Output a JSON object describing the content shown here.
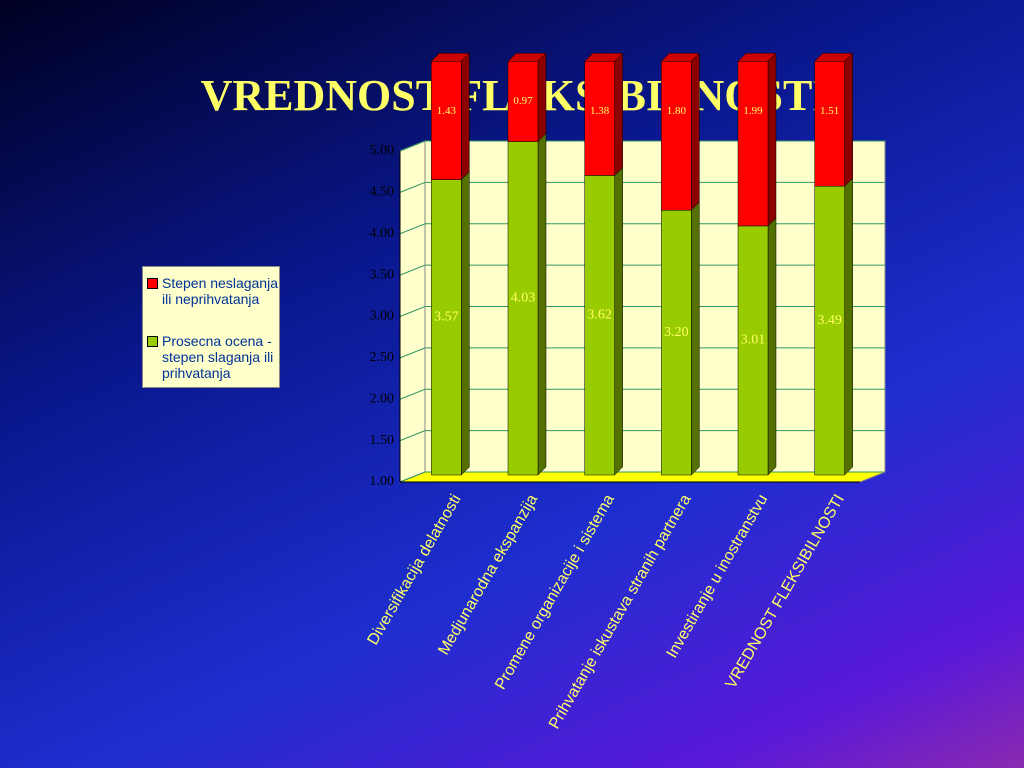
{
  "chart_data": {
    "type": "bar3d_stacked",
    "title": "VREDNOST FLEKSIBILNOSTI",
    "categories": [
      "Diversifikacija delatnosti",
      "Medjunarodna ekspanzija",
      "Promene organizacije i sistema",
      "Prihvatanje iskustava stranih partnera",
      "Investiranje u inostranstvu",
      "VREDNOST FLEKSIBILNOSTI"
    ],
    "series": [
      {
        "name": "Prosecna ocena - stepen slaganja ili prihvatanja",
        "color": "#99cc00",
        "values": [
          3.57,
          4.03,
          3.62,
          3.2,
          3.01,
          3.49
        ],
        "value_labels": [
          "3.57",
          "4.03",
          "3.62",
          "3.20",
          "3.01",
          "3.49"
        ]
      },
      {
        "name": "Stepen neslaganja ili neprihvatanja",
        "color": "#ff0000",
        "values": [
          1.43,
          0.97,
          1.38,
          1.8,
          1.99,
          1.51
        ],
        "value_labels": [
          "1.43",
          "0.97",
          "1.38",
          "1.80",
          "1.99",
          "1.51"
        ]
      }
    ],
    "ylim": [
      1,
      5
    ],
    "yticks": [
      {
        "value": 1,
        "label": "1.00"
      },
      {
        "value": 1.5,
        "label": "1.50"
      },
      {
        "value": 2,
        "label": "2.00"
      },
      {
        "value": 2.5,
        "label": "2.50"
      },
      {
        "value": 3,
        "label": "3.00"
      },
      {
        "value": 3.5,
        "label": "3.50"
      },
      {
        "value": 4,
        "label": "4.00"
      },
      {
        "value": 4.5,
        "label": "4.50"
      },
      {
        "value": 5,
        "label": "5.00"
      }
    ],
    "grid": true,
    "legend": "left"
  }
}
